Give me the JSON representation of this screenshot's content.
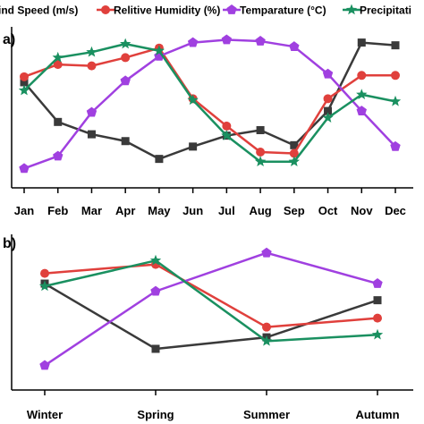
{
  "colors": {
    "wind_speed": "#3a3a3a",
    "humidity": "#e0403c",
    "temperature": "#a040e0",
    "precipitation": "#1a9060",
    "axis": "#000000"
  },
  "legend": {
    "items": [
      {
        "key": "wind_speed",
        "label": "ind Speed (m/s)",
        "marker": "square"
      },
      {
        "key": "humidity",
        "label": "Relitive Humidity (%)",
        "marker": "circle"
      },
      {
        "key": "temperature",
        "label": "Temparature (°C)",
        "marker": "pentagon"
      },
      {
        "key": "precipitation",
        "label": "Precipitati",
        "marker": "star"
      }
    ]
  },
  "chart_data": [
    {
      "panel_label": "a)",
      "type": "line",
      "categories": [
        "Jan",
        "Feb",
        "Mar",
        "Apr",
        "May",
        "Jun",
        "Jul",
        "Aug",
        "Sep",
        "Oct",
        "Nov",
        "Dec"
      ],
      "ylim": [
        0,
        100
      ],
      "y_ticks_shown": false,
      "grid": false,
      "series": [
        {
          "key": "wind_speed",
          "marker": "square",
          "values": [
            68,
            39,
            30,
            25,
            12,
            21,
            29,
            33,
            22,
            47,
            97,
            95
          ]
        },
        {
          "key": "humidity",
          "marker": "circle",
          "values": [
            72,
            81,
            80,
            86,
            93,
            56,
            36,
            17,
            16,
            56,
            73,
            73
          ]
        },
        {
          "key": "temperature",
          "marker": "pentagon",
          "values": [
            5,
            14,
            46,
            69,
            87,
            97,
            99,
            98,
            94,
            74,
            47,
            21
          ]
        },
        {
          "key": "precipitation",
          "marker": "star",
          "values": [
            62,
            86,
            90,
            96,
            91,
            55,
            29,
            10,
            10,
            42,
            59,
            54
          ]
        }
      ]
    },
    {
      "panel_label": "b)",
      "type": "line",
      "categories": [
        "Winter",
        "Spring",
        "Summer",
        "Autumn"
      ],
      "ylim": [
        0,
        100
      ],
      "y_ticks_shown": false,
      "grid": false,
      "series": [
        {
          "key": "wind_speed",
          "marker": "square",
          "values": [
            72,
            21,
            30,
            59
          ]
        },
        {
          "key": "humidity",
          "marker": "circle",
          "values": [
            80,
            87,
            38,
            45
          ]
        },
        {
          "key": "temperature",
          "marker": "pentagon",
          "values": [
            8,
            66,
            96,
            72
          ]
        },
        {
          "key": "precipitation",
          "marker": "star",
          "values": [
            70,
            90,
            27,
            32
          ]
        }
      ]
    }
  ]
}
